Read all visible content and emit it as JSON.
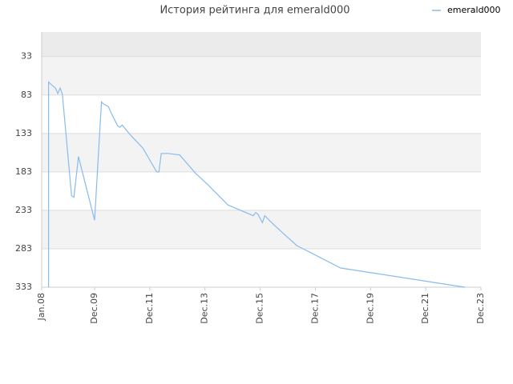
{
  "chart_data": {
    "type": "line",
    "title": "История рейтинга для emerald000",
    "x": [
      "2008-04",
      "2008-04",
      "2008-05",
      "2008-07",
      "2008-08",
      "2008-09",
      "2008-10",
      "2009-02",
      "2009-03",
      "2009-05",
      "2009-12",
      "2010-03",
      "2010-04",
      "2010-06",
      "2010-07",
      "2010-10",
      "2010-11",
      "2010-12",
      "2011-03",
      "2011-09",
      "2012-03",
      "2012-04",
      "2012-05",
      "2012-08",
      "2013-01",
      "2013-08",
      "2014-01",
      "2014-10",
      "2015-09",
      "2015-10",
      "2015-11",
      "2016-01",
      "2016-02",
      "2016-05",
      "2016-10",
      "2017-04",
      "2018-11",
      "2023-05"
    ],
    "series": [
      {
        "name": "emerald000",
        "color": "#88bbee",
        "values": [
          333,
          66,
          69,
          74,
          81,
          74,
          82,
          214,
          216,
          163,
          246,
          92,
          95,
          98,
          105,
          123,
          125,
          122,
          133,
          152,
          183,
          183,
          159,
          159,
          161,
          185,
          199,
          226,
          240,
          236,
          238,
          249,
          240,
          249,
          263,
          279,
          308,
          333
        ]
      }
    ],
    "xlim": [
      "2008-01",
      "2023-12"
    ],
    "xticks": [
      {
        "value": "2008-01",
        "label": "Jan.08"
      },
      {
        "value": "2009-12",
        "label": "Dec.09"
      },
      {
        "value": "2011-12",
        "label": "Dec.11"
      },
      {
        "value": "2013-12",
        "label": "Dec.13"
      },
      {
        "value": "2015-12",
        "label": "Dec.15"
      },
      {
        "value": "2017-12",
        "label": "Dec.17"
      },
      {
        "value": "2019-12",
        "label": "Dec.19"
      },
      {
        "value": "2021-12",
        "label": "Dec.21"
      },
      {
        "value": "2023-12",
        "label": "Dec.23"
      }
    ],
    "ylim": [
      333,
      1
    ],
    "yticks": [
      33,
      83,
      133,
      183,
      233,
      283,
      333
    ],
    "grid": true,
    "legend": "top-right"
  }
}
